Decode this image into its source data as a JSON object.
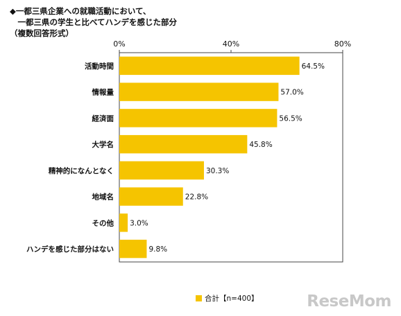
{
  "title_lines": [
    "◆一都三県企業への就職活動において、",
    "　一都三県の学生と比べてハンデを感じた部分",
    "（複数回答形式）"
  ],
  "logo_text": "ReseMom",
  "chart_data": {
    "type": "bar",
    "orientation": "horizontal",
    "categories": [
      "活動時間",
      "情報量",
      "経済面",
      "大学名",
      "精神的になんとなく",
      "地域名",
      "その他",
      "ハンデを感じた部分はない"
    ],
    "series": [
      {
        "name": "合計【n=400】",
        "values": [
          64.5,
          57.0,
          56.5,
          45.8,
          30.3,
          22.8,
          3.0,
          9.8
        ],
        "color": "#f5c400"
      }
    ],
    "value_labels": [
      "64.5%",
      "57.0%",
      "56.5%",
      "45.8%",
      "30.3%",
      "22.8%",
      "3.0%",
      "9.8%"
    ],
    "xlim": [
      0,
      80
    ],
    "xticks": [
      0,
      40,
      80
    ],
    "xtick_labels": [
      "0%",
      "40%",
      "80%"
    ],
    "grid": false,
    "legend_position": "bottom"
  }
}
